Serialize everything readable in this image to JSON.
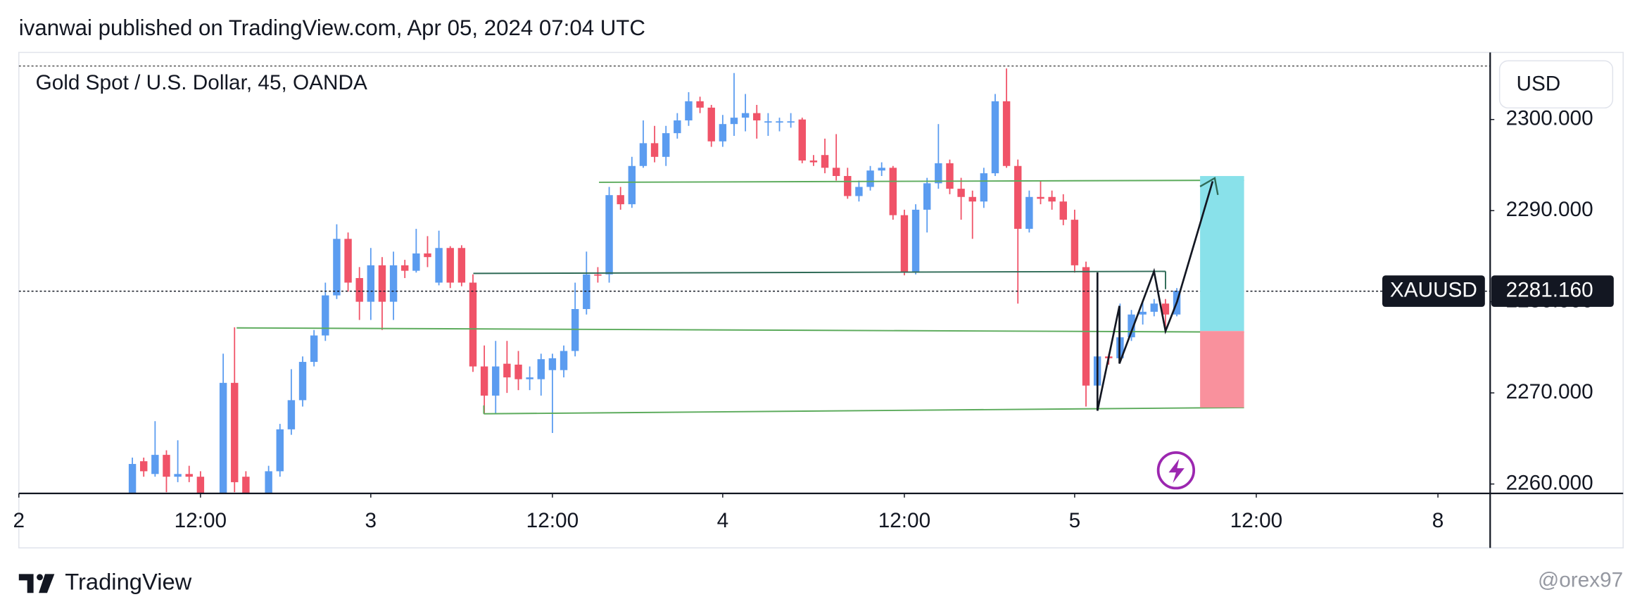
{
  "header": {
    "published": "ivanwai published on TradingView.com, Apr 05, 2024 07:04 UTC"
  },
  "footer": {
    "brand": "TradingView",
    "author": "@orex97"
  },
  "chart_data": {
    "type": "candlestick",
    "title": "Gold Spot / U.S. Dollar, 45, OANDA",
    "currency": "USD",
    "up_color": "#5b9cf0",
    "down_color": "#f05368",
    "x": [
      10,
      11,
      12,
      13,
      14,
      15,
      16,
      18,
      19,
      20,
      22,
      23,
      24,
      25,
      26,
      27,
      28,
      29,
      30,
      31,
      32,
      33,
      34,
      35,
      36,
      37,
      38,
      39,
      40,
      41,
      42,
      43,
      44,
      45,
      46,
      47,
      48,
      49,
      50,
      51,
      52,
      53,
      54,
      55,
      56,
      57,
      58,
      59,
      60,
      61,
      62,
      63,
      64,
      65,
      66,
      67,
      68,
      69,
      70,
      71,
      72,
      73,
      74,
      75,
      76,
      77,
      78,
      79,
      80,
      81,
      82,
      83,
      84,
      85,
      86,
      87,
      88,
      89,
      90,
      91,
      92,
      93,
      94,
      95,
      96,
      97,
      98,
      99,
      100,
      101,
      102
    ],
    "open": [
      2259.0,
      2262.5,
      2261.1,
      2263.2,
      2260.8,
      2261.1,
      2260.8,
      2259.0,
      2271.1,
      2260.8,
      2259.0,
      2261.4,
      2266.0,
      2269.2,
      2273.4,
      2276.3,
      2280.7,
      2286.9,
      2282.6,
      2280.0,
      2284.0,
      2280.0,
      2284.0,
      2283.4,
      2285.3,
      2282.1,
      2285.9,
      2285.9,
      2282.1,
      2272.9,
      2269.7,
      2273.2,
      2273.1,
      2271.5,
      2271.5,
      2272.5,
      2272.5,
      2274.6,
      2279.2,
      2283.0,
      2283.0,
      2291.7,
      2290.7,
      2294.9,
      2297.4,
      2295.9,
      2298.5,
      2299.9,
      2302.0,
      2301.3,
      2297.6,
      2299.5,
      2300.2,
      2300.7,
      2299.7,
      2299.7,
      2299.7,
      2300.0,
      2295.5,
      2296.1,
      2294.7,
      2293.8,
      2291.6,
      2292.6,
      2294.4,
      2294.7,
      2289.5,
      2283.2,
      2290.1,
      2293.0,
      2295.2,
      2292.4,
      2291.5,
      2291.0,
      2294.1,
      2302.0,
      2294.9,
      2288.0,
      2291.5,
      2291.5,
      2291.0,
      2289.0,
      2283.8,
      2270.8,
      2274.0,
      2273.8,
      2276.1,
      2278.6,
      2278.9,
      2279.8,
      2278.6
    ],
    "high": [
      2262.9,
      2262.9,
      2266.9,
      2263.7,
      2264.8,
      2262.0,
      2261.4,
      2274.3,
      2277.2,
      2261.4,
      2262.0,
      2266.6,
      2272.6,
      2274.0,
      2276.9,
      2282.1,
      2288.5,
      2287.6,
      2283.8,
      2285.9,
      2284.9,
      2285.5,
      2284.6,
      2288.0,
      2287.2,
      2287.8,
      2286.1,
      2286.2,
      2283.0,
      2275.2,
      2275.7,
      2275.7,
      2274.6,
      2272.9,
      2274.3,
      2274.3,
      2275.2,
      2282.1,
      2285.5,
      2283.8,
      2292.6,
      2292.6,
      2295.9,
      2299.9,
      2299.3,
      2299.3,
      2300.7,
      2303.0,
      2302.5,
      2301.6,
      2300.5,
      2305.1,
      2302.8,
      2301.6,
      2300.7,
      2300.2,
      2300.7,
      2300.2,
      2296.1,
      2297.9,
      2298.4,
      2294.7,
      2293.3,
      2294.9,
      2295.3,
      2294.9,
      2290.1,
      2290.7,
      2293.6,
      2299.5,
      2295.6,
      2293.6,
      2292.2,
      2294.7,
      2302.8,
      2305.6,
      2295.6,
      2292.2,
      2293.3,
      2292.2,
      2291.8,
      2290.1,
      2284.4,
      2274.6,
      2274.3,
      2279.8,
      2279.1,
      2280.0,
      2280.3,
      2280.3,
      2281.5
    ],
    "low": [
      2258.5,
      2260.8,
      2260.8,
      2259.1,
      2260.2,
      2260.2,
      2258.5,
      2258.5,
      2259.1,
      2258.5,
      2258.5,
      2260.8,
      2265.4,
      2268.5,
      2272.9,
      2275.7,
      2280.3,
      2281.1,
      2278.0,
      2278.0,
      2276.9,
      2278.0,
      2282.6,
      2283.2,
      2283.8,
      2281.8,
      2281.5,
      2281.7,
      2272.3,
      2267.7,
      2267.7,
      2270.0,
      2270.3,
      2270.3,
      2269.7,
      2265.6,
      2271.7,
      2274.0,
      2278.6,
      2282.1,
      2282.1,
      2290.1,
      2290.3,
      2294.7,
      2295.3,
      2294.9,
      2297.9,
      2299.3,
      2300.7,
      2297.0,
      2297.0,
      2298.2,
      2298.7,
      2297.9,
      2298.2,
      2298.7,
      2299.1,
      2295.2,
      2294.9,
      2294.1,
      2293.3,
      2291.3,
      2291.0,
      2292.2,
      2293.8,
      2289.0,
      2282.9,
      2283.0,
      2287.6,
      2292.4,
      2291.8,
      2289.0,
      2286.9,
      2290.3,
      2293.8,
      2294.7,
      2279.8,
      2287.6,
      2290.7,
      2290.1,
      2288.4,
      2283.2,
      2268.5,
      2268.9,
      2273.1,
      2273.4,
      2275.7,
      2277.5,
      2278.4,
      2276.9,
      2278.4
    ],
    "close": [
      2262.2,
      2261.4,
      2263.2,
      2260.8,
      2261.1,
      2260.8,
      2259.0,
      2271.1,
      2260.2,
      2259.0,
      2261.4,
      2266.0,
      2269.2,
      2273.4,
      2276.3,
      2280.7,
      2286.9,
      2282.1,
      2280.0,
      2284.0,
      2280.0,
      2284.0,
      2283.4,
      2285.3,
      2284.9,
      2285.9,
      2282.1,
      2282.1,
      2272.9,
      2269.7,
      2272.9,
      2271.7,
      2271.5,
      2271.7,
      2273.7,
      2273.8,
      2274.6,
      2279.2,
      2283.0,
      2282.9,
      2291.7,
      2290.7,
      2294.9,
      2297.4,
      2295.9,
      2298.5,
      2299.9,
      2302.0,
      2301.3,
      2297.6,
      2299.5,
      2300.2,
      2300.7,
      2299.9,
      2299.8,
      2299.8,
      2299.8,
      2295.5,
      2295.3,
      2294.7,
      2293.8,
      2291.6,
      2292.6,
      2294.4,
      2294.7,
      2289.5,
      2283.2,
      2290.1,
      2293.0,
      2295.2,
      2292.4,
      2291.5,
      2291.0,
      2294.1,
      2302.0,
      2294.9,
      2288.0,
      2291.5,
      2291.3,
      2291.0,
      2289.0,
      2284.0,
      2270.8,
      2274.0,
      2273.8,
      2276.1,
      2278.6,
      2278.9,
      2279.8,
      2278.6,
      2281.2
    ],
    "xlim": [
      0,
      129.6
    ],
    "xticks": [
      {
        "value": 0,
        "label": "2"
      },
      {
        "value": 16,
        "label": "12:00"
      },
      {
        "value": 31,
        "label": "3"
      },
      {
        "value": 47,
        "label": "12:00"
      },
      {
        "value": 62,
        "label": "4"
      },
      {
        "value": 78,
        "label": "12:00"
      },
      {
        "value": 93,
        "label": "5"
      },
      {
        "value": 109,
        "label": "12:00"
      },
      {
        "value": 125,
        "label": "8"
      }
    ],
    "ylim": [
      2258.97,
      2307.36
    ],
    "yticks": [
      {
        "value": 2260,
        "label": "2260.000"
      },
      {
        "value": 2270,
        "label": "2270.000"
      },
      {
        "value": 2280,
        "label": "2280.000"
      },
      {
        "value": 2290,
        "label": "2290.000"
      },
      {
        "value": 2300,
        "label": "2300.000"
      }
    ],
    "last_price": {
      "value": 2281.16,
      "label": "2281.160",
      "symbol": "XAUUSD"
    },
    "grid": false
  }
}
